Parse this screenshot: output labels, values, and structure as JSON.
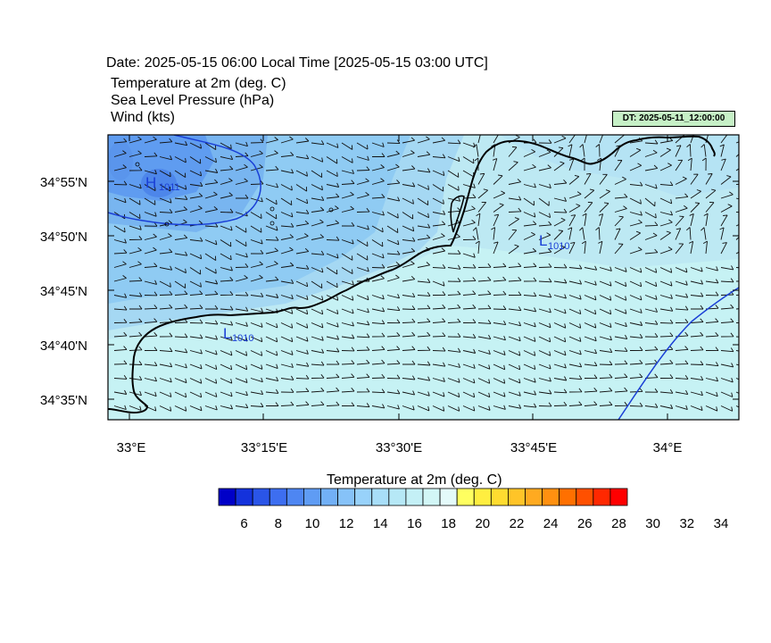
{
  "header": {
    "date_line": "Date: 2025-05-15  06:00 Local Time [2025-05-15  03:00 UTC]",
    "field1": "Temperature at 2m   (deg. C)",
    "field2": "Sea Level Pressure   (hPa)",
    "field3": "Wind   (kts)",
    "dt_badge": "DT: 2025-05-11_12:00:00",
    "dt_badge_color": "#c6f0c6"
  },
  "map": {
    "lat_labels": [
      "34°55'N",
      "34°50'N",
      "34°45'N",
      "34°40'N",
      "34°35'N"
    ],
    "lon_labels": [
      "33°E",
      "33°15'E",
      "33°30'E",
      "33°45'E",
      "34°E"
    ],
    "pressure_centers": [
      {
        "symbol": "H",
        "value": "1011"
      },
      {
        "symbol": "L",
        "value": "1010"
      },
      {
        "symbol": "L",
        "value": "1010"
      }
    ],
    "contour_color": "#1a3fd6",
    "coast_color": "#000000"
  },
  "colorbar": {
    "title": "Temperature at 2m  (deg. C)",
    "tick_labels": [
      "6",
      "8",
      "10",
      "12",
      "14",
      "16",
      "18",
      "20",
      "22",
      "24",
      "26",
      "28",
      "30",
      "32",
      "34"
    ],
    "colors": [
      "#0000c8",
      "#1432dc",
      "#2a55e8",
      "#3d6ef0",
      "#4e86f2",
      "#5f9cf4",
      "#72b0f6",
      "#86c2f8",
      "#98d2fa",
      "#a8def8",
      "#b6e8f6",
      "#c4f0f6",
      "#d2f6f6",
      "#e4fafa",
      "#ffff60",
      "#ffee40",
      "#ffdc30",
      "#ffc428",
      "#ffaa20",
      "#ff9010",
      "#ff7000",
      "#ff5000",
      "#ff2800",
      "#ff0000"
    ]
  }
}
